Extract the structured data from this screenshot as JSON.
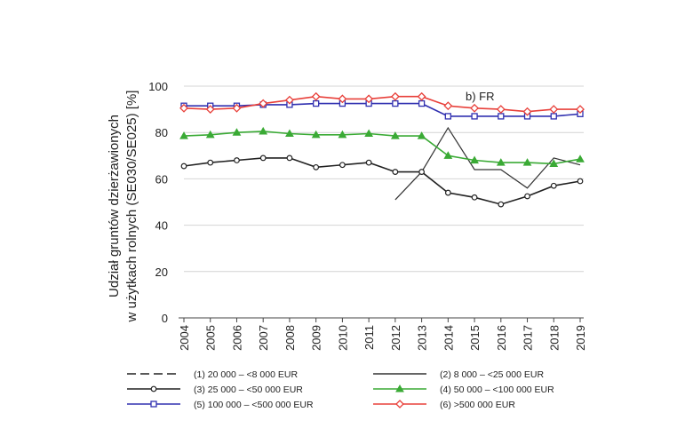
{
  "chart_data": {
    "type": "line",
    "panel_label": "b) FR",
    "ylabel_line1": "Udział gruntów dzierżawionych",
    "ylabel_line2": "w użytkach rolnych (SE030/SE025) [%]",
    "ylim": [
      0,
      100
    ],
    "yticks": [
      "0",
      "20",
      "40",
      "60",
      "80",
      "100"
    ],
    "categories": [
      "2004",
      "2005",
      "2006",
      "2007",
      "2008",
      "2009",
      "2010",
      "2011",
      "2012",
      "2013",
      "2014",
      "2015",
      "2016",
      "2017",
      "2018",
      "2019"
    ],
    "grid": "horizontal",
    "legend_position": "bottom",
    "series": [
      {
        "name": "(1) 20 000 – <8 000 EUR",
        "color": "#222222",
        "dash": "dashed",
        "marker": "none",
        "values": [
          null,
          null,
          null,
          null,
          null,
          null,
          null,
          null,
          null,
          null,
          null,
          null,
          null,
          null,
          null,
          null
        ]
      },
      {
        "name": "(2) 8 000 – <25 000 EUR",
        "color": "#333333",
        "dash": "solid",
        "marker": "none",
        "values": [
          null,
          null,
          null,
          null,
          null,
          null,
          null,
          null,
          51,
          63,
          82,
          64,
          64,
          56,
          69,
          66
        ]
      },
      {
        "name": "(3) 25 000 – <50 000 EUR",
        "color": "#222222",
        "dash": "solid",
        "marker": "circle",
        "values": [
          65.5,
          67,
          68,
          69,
          69,
          65,
          66,
          67,
          63,
          63,
          54,
          52,
          49,
          52.5,
          57,
          59
        ]
      },
      {
        "name": "(4) 50 000 – <100 000 EUR",
        "color": "#3aaa35",
        "dash": "solid",
        "marker": "triangle",
        "values": [
          78.5,
          79,
          80,
          80.5,
          79.5,
          79,
          79,
          79.5,
          78.5,
          78.5,
          70,
          68,
          67,
          67,
          66.5,
          68.5
        ]
      },
      {
        "name": "(5) 100 000 – <500 000 EUR",
        "color": "#3030b0",
        "dash": "solid",
        "marker": "square",
        "values": [
          91.5,
          91.5,
          91.5,
          92,
          92,
          92.5,
          92.5,
          92.5,
          92.5,
          92.5,
          87,
          87,
          87,
          87,
          87,
          88
        ]
      },
      {
        "name": "(6) >500 000 EUR",
        "color": "#e8403a",
        "dash": "solid",
        "marker": "diamond",
        "values": [
          90.5,
          90,
          90.5,
          92.5,
          94,
          95.5,
          94.5,
          94.5,
          95.5,
          95.5,
          91.5,
          90.5,
          90,
          89,
          90,
          90
        ]
      }
    ]
  }
}
